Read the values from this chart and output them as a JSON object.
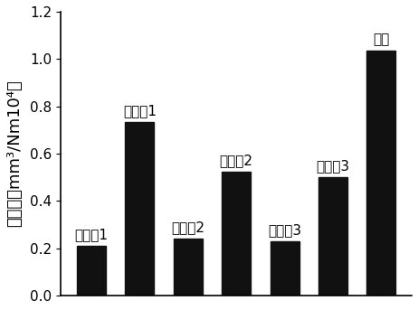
{
  "bars": [
    {
      "label": "实施例1",
      "value": 0.21,
      "annotation": "实施例1",
      "ann_above": false
    },
    {
      "label": "对比例1",
      "value": 0.735,
      "annotation": "对比例1",
      "ann_above": true
    },
    {
      "label": "实施例2",
      "value": 0.24,
      "annotation": "实施例2",
      "ann_above": false
    },
    {
      "label": "对比例2",
      "value": 0.525,
      "annotation": "对比例2",
      "ann_above": true
    },
    {
      "label": "实施例3",
      "value": 0.23,
      "annotation": "实施例3",
      "ann_above": false
    },
    {
      "label": "对比例3",
      "value": 0.5,
      "annotation": "对比例3",
      "ann_above": true
    },
    {
      "label": "基体",
      "value": 1.035,
      "annotation": "基体",
      "ann_above": true
    }
  ],
  "bar_color": "#111111",
  "bar_width": 0.6,
  "ylabel": "磨损率（mm³/Nm10⁴）",
  "ylim": [
    0,
    1.2
  ],
  "yticks": [
    0.0,
    0.2,
    0.4,
    0.6,
    0.8,
    1.0,
    1.2
  ],
  "background_color": "#ffffff",
  "annotation_fontsize": 11,
  "ylabel_fontsize": 13,
  "tick_fontsize": 11
}
